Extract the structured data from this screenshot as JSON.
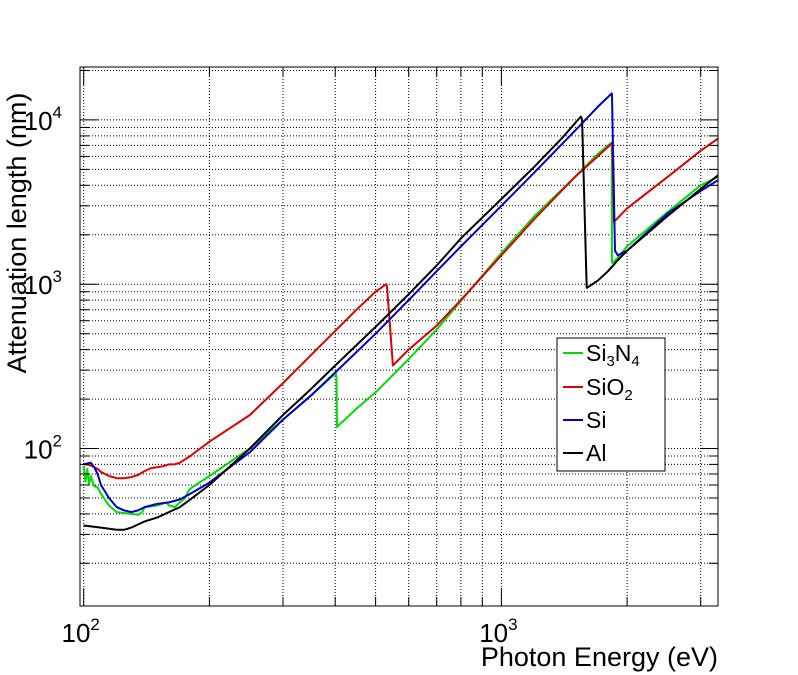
{
  "chart_data": {
    "type": "line",
    "title": "",
    "xlabel": "Photon Energy (eV)",
    "ylabel": "Attenuation length (nm)",
    "xscale": "log",
    "yscale": "log",
    "xlim": [
      98,
      3300
    ],
    "ylim": [
      11,
      21000
    ],
    "grid": true,
    "legend_position": "center-right",
    "x_ticks": [
      {
        "base": "10",
        "exp": "2",
        "value": 100
      },
      {
        "base": "10",
        "exp": "3",
        "value": 1000
      }
    ],
    "y_ticks": [
      {
        "base": "10",
        "exp": "2",
        "value": 100
      },
      {
        "base": "10",
        "exp": "3",
        "value": 1000
      },
      {
        "base": "10",
        "exp": "4",
        "value": 10000
      }
    ],
    "series": [
      {
        "name": "Si3N4",
        "legend": {
          "parts": [
            {
              "t": "Si"
            },
            {
              "t": "3",
              "sub": true
            },
            {
              "t": "N"
            },
            {
              "t": "4",
              "sub": true
            }
          ]
        },
        "color": "#00dd00",
        "x": [
          100,
          101,
          102,
          103,
          104,
          106,
          108,
          110,
          115,
          120,
          125,
          130,
          135,
          138,
          140,
          150,
          158,
          160,
          163,
          165,
          170,
          175,
          178,
          180,
          200,
          250,
          300,
          350,
          400,
          401,
          403,
          404,
          410,
          450,
          500,
          600,
          700,
          800,
          1000,
          1200,
          1500,
          1700,
          1800,
          1838,
          1840,
          1845,
          1900,
          2000,
          2500,
          3000,
          3300
        ],
        "y": [
          78,
          63,
          75,
          60,
          68,
          59,
          58,
          53,
          45,
          41,
          40.5,
          40,
          39.5,
          41,
          44,
          45,
          47,
          45,
          44.5,
          44,
          47,
          50,
          55,
          57,
          68,
          100,
          150,
          210,
          285,
          290,
          270,
          135,
          140,
          175,
          220,
          350,
          530,
          790,
          1550,
          2600,
          4500,
          6200,
          7000,
          7300,
          1350,
          1350,
          1450,
          1700,
          2750,
          4000,
          4500
        ]
      },
      {
        "name": "SiO2",
        "legend": {
          "parts": [
            {
              "t": "SiO"
            },
            {
              "t": "2",
              "sub": true
            }
          ]
        },
        "color": "#dd0000",
        "x": [
          100,
          102,
          105,
          108,
          110,
          115,
          120,
          125,
          130,
          135,
          140,
          145,
          150,
          155,
          160,
          165,
          170,
          175,
          180,
          200,
          250,
          300,
          350,
          400,
          450,
          500,
          530,
          532,
          540,
          550,
          600,
          700,
          800,
          1000,
          1200,
          1500,
          1700,
          1838,
          1842,
          1860,
          2000,
          2500,
          3000,
          3300
        ],
        "y": [
          80,
          80,
          78,
          75,
          72,
          68,
          66,
          66,
          67,
          69,
          73,
          76,
          77,
          78,
          80,
          80,
          82,
          86,
          90,
          110,
          160,
          250,
          370,
          520,
          700,
          900,
          1000,
          980,
          600,
          320,
          400,
          560,
          800,
          1500,
          2500,
          4500,
          6000,
          7200,
          7000,
          2400,
          2900,
          4500,
          6500,
          7700
        ]
      },
      {
        "name": "Si",
        "legend": {
          "parts": [
            {
              "t": "Si"
            }
          ]
        },
        "color": "#0000cc",
        "x": [
          100,
          102,
          104,
          106,
          108,
          110,
          115,
          120,
          125,
          130,
          135,
          140,
          150,
          160,
          170,
          180,
          200,
          250,
          300,
          350,
          400,
          500,
          600,
          700,
          800,
          1000,
          1200,
          1500,
          1700,
          1838,
          1840,
          1870,
          1900,
          2000,
          2500,
          3000,
          3300
        ],
        "y": [
          80,
          81,
          82,
          77,
          70,
          60,
          50,
          44,
          42,
          41,
          42,
          44,
          46,
          47,
          49,
          53,
          62,
          95,
          150,
          210,
          290,
          500,
          800,
          1200,
          1700,
          3000,
          4800,
          8600,
          12000,
          14500,
          14000,
          1600,
          1500,
          1600,
          2700,
          3700,
          4300
        ]
      },
      {
        "name": "Al",
        "legend": {
          "parts": [
            {
              "t": "Al"
            }
          ]
        },
        "color": "#000000",
        "x": [
          100,
          110,
          120,
          125,
          130,
          140,
          150,
          160,
          170,
          180,
          200,
          250,
          300,
          350,
          400,
          500,
          600,
          700,
          800,
          1000,
          1200,
          1400,
          1550,
          1560,
          1600,
          1700,
          1800,
          1900,
          2000,
          2500,
          3000,
          3300
        ],
        "y": [
          34,
          33,
          32,
          32,
          33,
          36,
          38,
          41,
          44,
          49,
          60,
          100,
          160,
          230,
          320,
          550,
          870,
          1300,
          1900,
          3300,
          5200,
          7800,
          10500,
          10000,
          950,
          1050,
          1200,
          1400,
          1600,
          2600,
          3800,
          4600
        ]
      }
    ]
  }
}
